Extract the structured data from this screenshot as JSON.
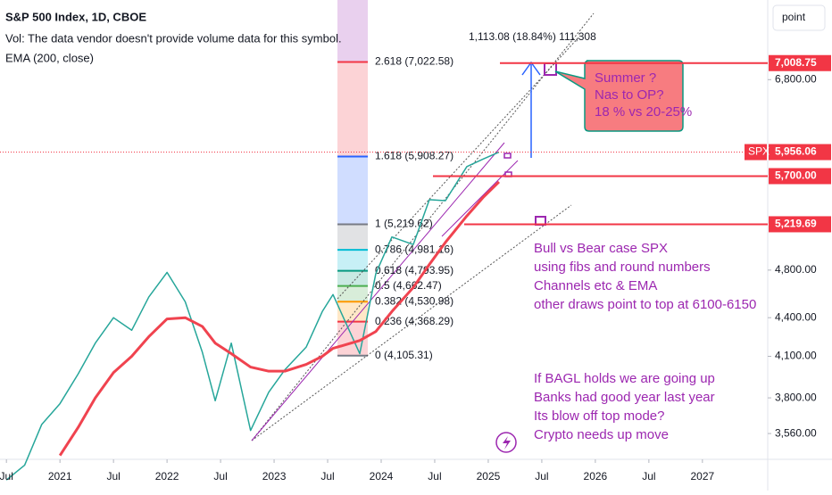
{
  "header": {
    "title": "S&P 500 Index, 1D, CBOE",
    "volume_note": "Vol: The data vendor doesn't provide volume data for this symbol.",
    "indicator": "EMA (200, close)"
  },
  "scale_button": "point",
  "chart_data": {
    "type": "line",
    "log_scale": true,
    "xlim": [
      2020.44,
      2027.61
    ],
    "ylim": [
      3396,
      7866
    ],
    "xticks": [
      {
        "value": 2020.5,
        "label": "Jul"
      },
      2021,
      {
        "value": 2021.5,
        "label": "Jul"
      },
      2022,
      {
        "value": 2022.5,
        "label": "Jul"
      },
      2023,
      {
        "value": 2023.5,
        "label": "Jul"
      },
      2024,
      {
        "value": 2024.5,
        "label": "Jul"
      },
      2025,
      {
        "value": 2025.5,
        "label": "Jul"
      },
      2026,
      {
        "value": 2026.5,
        "label": "Jul"
      },
      2027
    ],
    "yticks": [
      {
        "value": 3560,
        "label": "3,560.00"
      },
      {
        "value": 3800,
        "label": "3,800.00"
      },
      {
        "value": 4100,
        "label": "4,100.00"
      },
      {
        "value": 4400,
        "label": "4,400.00"
      },
      {
        "value": 4800,
        "label": "4,800.00"
      },
      {
        "value": 6800,
        "label": "6,800.00"
      }
    ],
    "x": [
      2020.5,
      2020.67,
      2020.83,
      2021.0,
      2021.17,
      2021.33,
      2021.5,
      2021.67,
      2021.83,
      2022.0,
      2022.17,
      2022.33,
      2022.45,
      2022.6,
      2022.78,
      2022.95,
      2023.1,
      2023.3,
      2023.45,
      2023.55,
      2023.8,
      2023.95,
      2024.1,
      2024.3,
      2024.45,
      2024.6,
      2024.8,
      2024.95,
      2025.1
    ],
    "series": [
      {
        "name": "S&P 500 Index",
        "color": "#26a69a",
        "values": [
          3270,
          3360,
          3620,
          3760,
          3970,
          4200,
          4400,
          4300,
          4570,
          4780,
          4530,
          4130,
          3780,
          4200,
          3580,
          3840,
          4000,
          4170,
          4450,
          4590,
          4120,
          4770,
          5100,
          5030,
          5460,
          5450,
          5800,
          5880,
          5956
        ]
      },
      {
        "name": "EMA (200, close)",
        "color": "#f0434f",
        "values": [
          null,
          null,
          null,
          3420,
          3600,
          3800,
          3980,
          4100,
          4250,
          4390,
          4400,
          4330,
          4200,
          4120,
          4020,
          3990,
          3990,
          4040,
          4100,
          4160,
          4220,
          4290,
          4450,
          4650,
          4850,
          5050,
          5300,
          5480,
          5640
        ]
      }
    ],
    "fib_levels": [
      {
        "value": 7022.58,
        "label": "2.618 (7,022.58)",
        "color": "#f23645"
      },
      {
        "value": 5908.27,
        "label": "1.618 (5,908.27)",
        "color": "#2962ff"
      },
      {
        "value": 5219.62,
        "label": "1 (5,219.62)",
        "color": "#787b86"
      },
      {
        "value": 4981.16,
        "label": "0.786 (4,981.16)",
        "color": "#00bcd4"
      },
      {
        "value": 4793.95,
        "label": "0.618 (4,793.95)",
        "color": "#089981"
      },
      {
        "value": 4662.47,
        "label": "0.5 (4,662.47)",
        "color": "#4caf50"
      },
      {
        "value": 4530.98,
        "label": "0.382 (4,530.98)",
        "color": "#ff9800"
      },
      {
        "value": 4368.29,
        "label": "0.236 (4,368.29)",
        "color": "#f23645"
      },
      {
        "value": 4105.31,
        "label": "0 (4,105.31)",
        "color": "#787b86"
      }
    ],
    "price_flags": [
      {
        "value": 7008.75,
        "label": "7,008.75"
      },
      {
        "value": 5956.06,
        "label": "5,956.06",
        "tag": "SPX"
      },
      {
        "value": 5700,
        "label": "5,700.00"
      },
      {
        "value": 5219.69,
        "label": "5,219.69"
      }
    ],
    "measure_label": "1,113.08 (18.84%) 111,308",
    "callout": [
      "Summer ?",
      "Nas to OP?",
      "18 % vs 20-25%"
    ],
    "notes": [
      "Bull vs Bear case SPX",
      "using fibs and round numbers",
      "Channels etc & EMA",
      "other draws point to top at 6100-6150"
    ],
    "notes2": [
      "If BAGL holds we are going up",
      "Banks had good year last year",
      "Its blow off top mode?",
      "Crypto needs up move"
    ]
  }
}
